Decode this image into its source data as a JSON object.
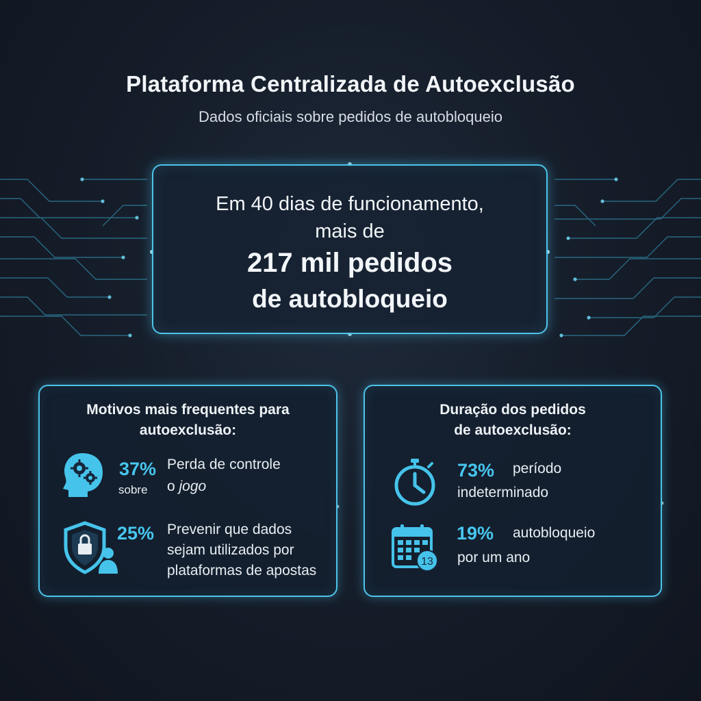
{
  "header": {
    "title": "Plataforma Centralizada de Autoexclusão",
    "subtitle": "Dados oficiais sobre pedidos de autobloqueio"
  },
  "hero": {
    "line1": "Em 40 dias de funcionamento,",
    "line2": "mais de",
    "highlight1": "217 mil pedidos",
    "highlight2": "de autobloqueio"
  },
  "reasons": {
    "title_line1": "Motivos mais frequentes para",
    "title_line2": "autoexclusão:",
    "items": [
      {
        "icon": "head-gears-icon",
        "percent": "37%",
        "prefix": "sobre",
        "text_line1": "Perda de controle",
        "text_line2_plain": "o ",
        "text_line2_italic": "jogo"
      },
      {
        "icon": "shield-lock-user-icon",
        "percent": "25%",
        "text_line1": "Prevenir que dados",
        "text_line2": "sejam utilizados por",
        "text_line3": "plataformas de apostas"
      }
    ]
  },
  "duration": {
    "title_line1": "Duração dos pedidos",
    "title_line2": "de autoexclusão:",
    "items": [
      {
        "icon": "stopwatch-icon",
        "percent": "73%",
        "text_line1": "período",
        "text_line2": "indeterminado"
      },
      {
        "icon": "calendar-icon",
        "calendar_day": "13",
        "percent": "19%",
        "text_line1": "autobloqueio",
        "text_line2": "por um ano"
      }
    ]
  },
  "colors": {
    "accent": "#47c6ee",
    "border": "#4cc4ea",
    "background": "#161e2b"
  }
}
